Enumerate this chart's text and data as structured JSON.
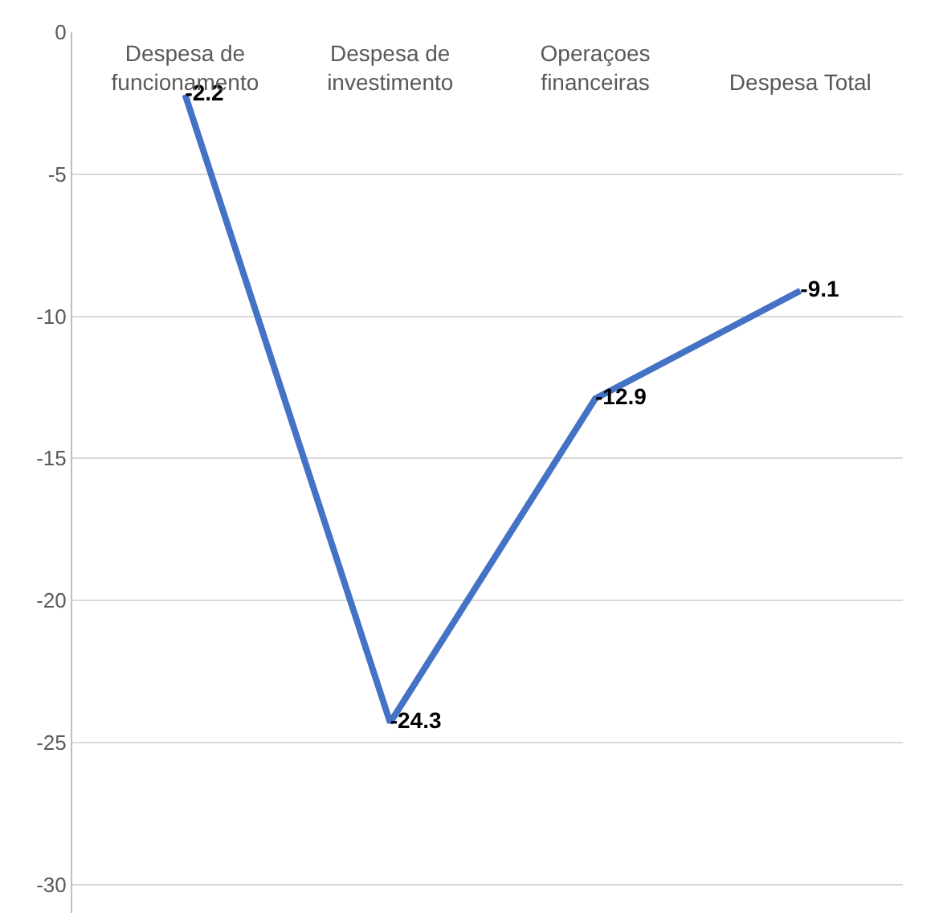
{
  "chart_data": {
    "type": "line",
    "categories": [
      "Despesa de funcionamento",
      "Despesa de investimento",
      "Operaçoes financeiras",
      "Despesa Total"
    ],
    "series": [
      {
        "color": "#4472c4",
        "values": [
          -2.2,
          -24.3,
          -12.9,
          -9.1
        ]
      }
    ],
    "ylim": [
      -31,
      0
    ],
    "yticks": [
      0,
      -5,
      -10,
      -15,
      -20,
      -25,
      -30
    ],
    "grid": "y",
    "legend": false,
    "data_labels": true,
    "marker": "none",
    "line_style": "solid"
  }
}
